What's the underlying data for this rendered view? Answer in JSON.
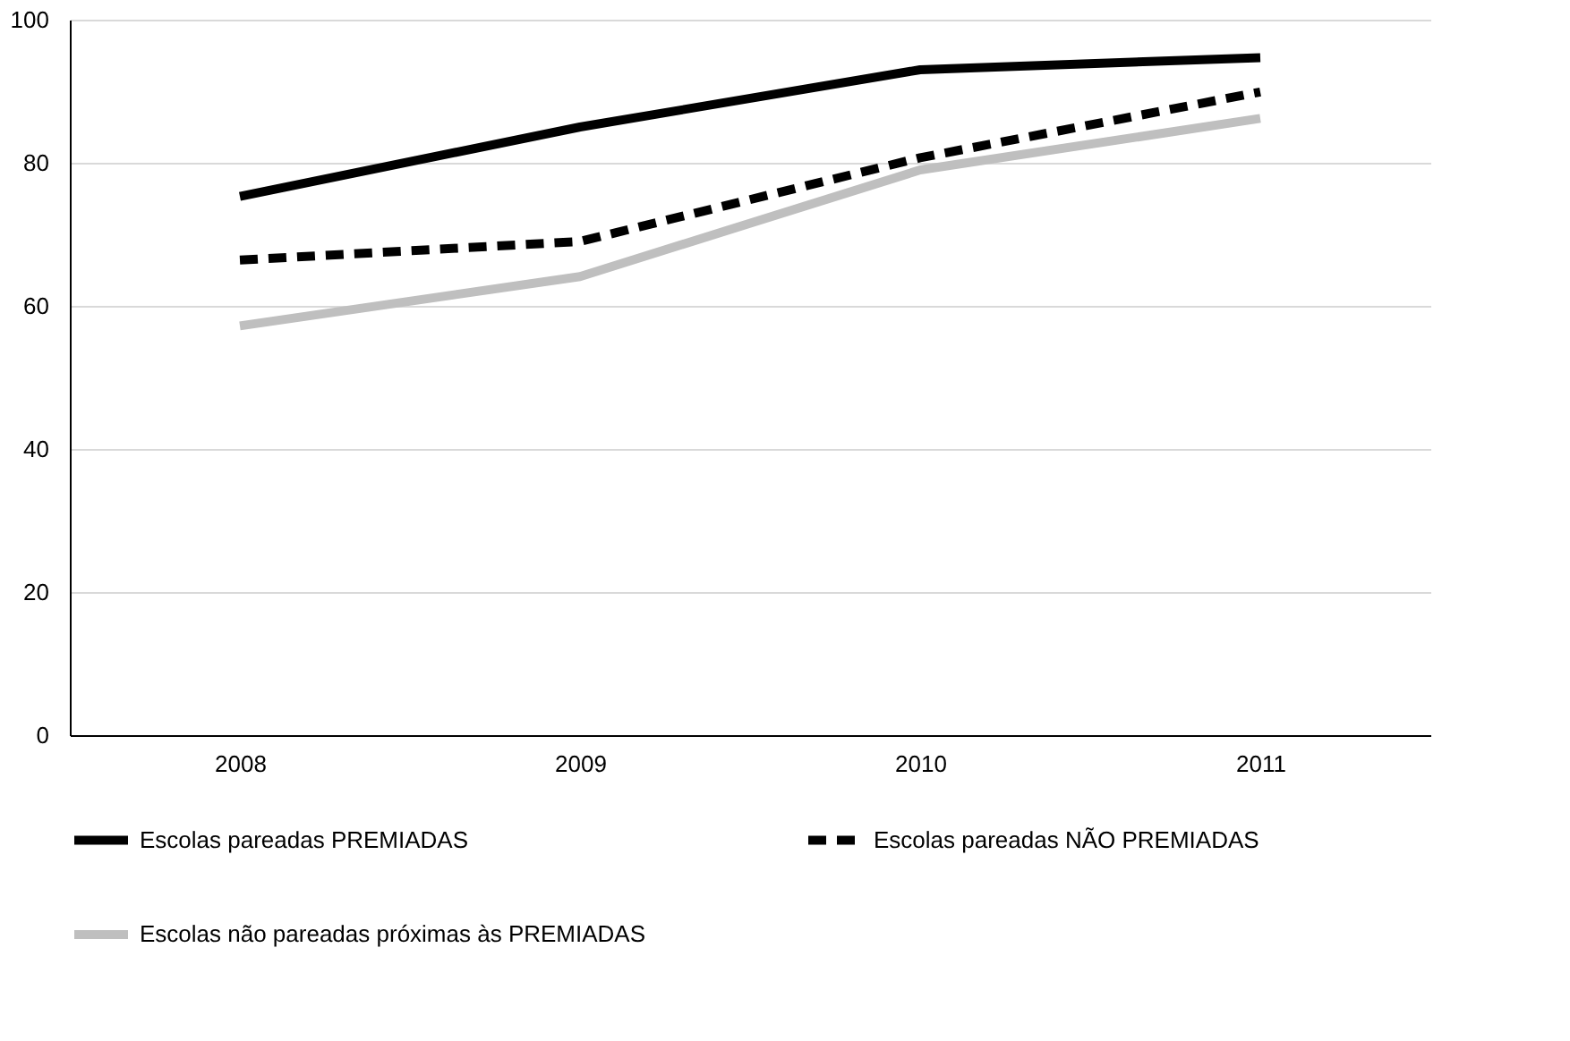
{
  "chart_data": {
    "type": "line",
    "categories": [
      "2008",
      "2009",
      "2010",
      "2011"
    ],
    "series": [
      {
        "name": "Escolas pareadas PREMIADAS",
        "color": "#000000",
        "line_style": "solid",
        "values": [
          75.3,
          85.0,
          93.0,
          94.7
        ]
      },
      {
        "name": "Escolas pareadas NÃO PREMIADAS",
        "color": "#000000",
        "line_style": "dashed",
        "values": [
          66.4,
          69.0,
          80.7,
          89.9
        ]
      },
      {
        "name": "Escolas não pareadas próximas às PREMIADAS",
        "color": "#bfbfbf",
        "line_style": "solid",
        "values": [
          57.2,
          64.1,
          79.0,
          86.2
        ]
      }
    ],
    "ylim": [
      0,
      100
    ],
    "yticks": [
      0,
      20,
      40,
      60,
      80,
      100
    ],
    "grid": "y",
    "legend": "bottom",
    "marker": "none"
  }
}
